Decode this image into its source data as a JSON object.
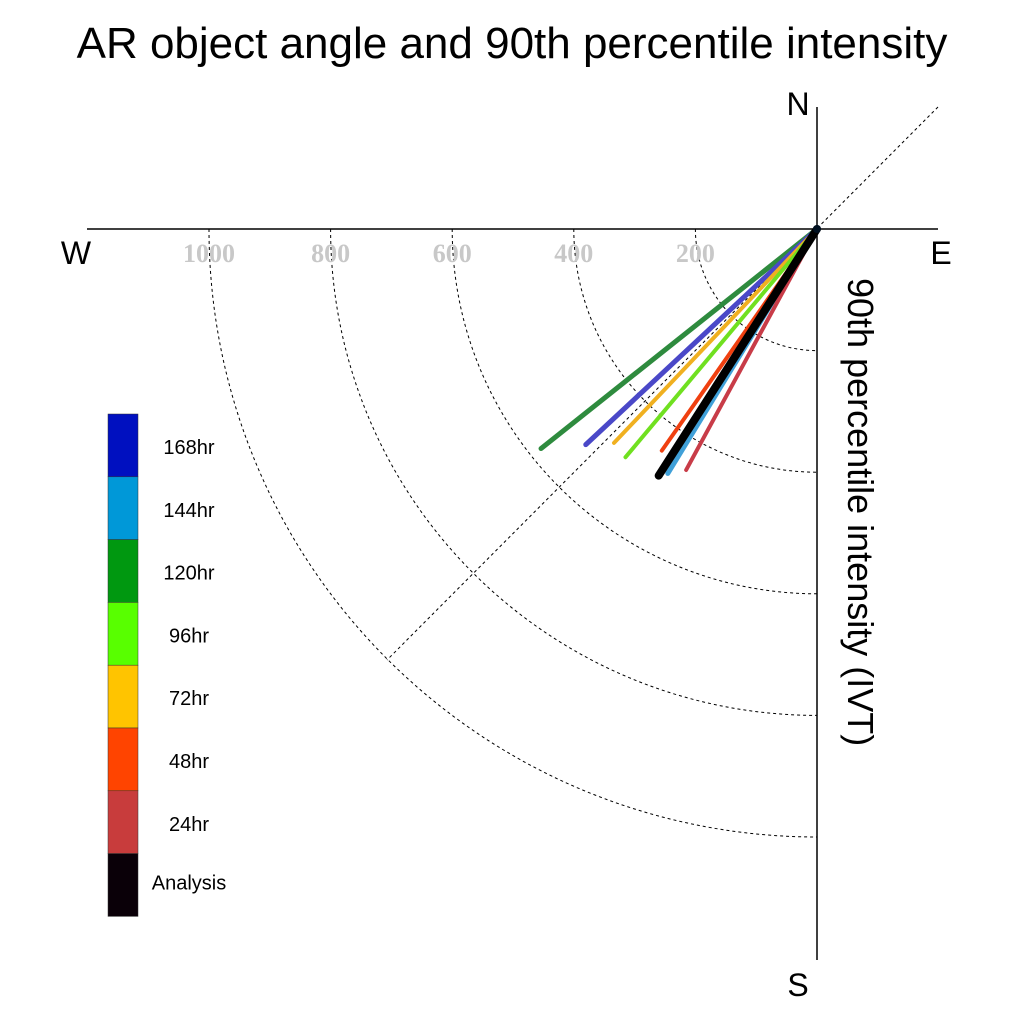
{
  "chart_data": {
    "type": "polar-line",
    "title": "AR object angle and 90th percentile intensity",
    "ylabel": "90th percentile intensity (IVT)",
    "compass": {
      "north": "N",
      "south": "S",
      "east": "E",
      "west": "W"
    },
    "radial_ticks": [
      {
        "value": 200,
        "label": "200"
      },
      {
        "value": 400,
        "label": "400"
      },
      {
        "value": 600,
        "label": "600"
      },
      {
        "value": 800,
        "label": "800"
      },
      {
        "value": 1000,
        "label": "1000"
      }
    ],
    "radial_max": 1000,
    "reference_angle_deg": 45,
    "angle_convention": "degrees below west axis",
    "legend": [
      {
        "label": "168hr",
        "color": "#0010c0"
      },
      {
        "label": "144hr",
        "color": "#0098d8"
      },
      {
        "label": "120hr",
        "color": "#009810"
      },
      {
        "label": "96hr",
        "color": "#58ff00"
      },
      {
        "label": "72hr",
        "color": "#ffc400"
      },
      {
        "label": "48hr",
        "color": "#ff4400"
      },
      {
        "label": "24hr",
        "color": "#c83c3c"
      },
      {
        "label": "Analysis",
        "color": "#0a0008"
      }
    ],
    "series": [
      {
        "name": "120hr",
        "color": "#2e8b3e",
        "angle_deg": 38.5,
        "value": 580,
        "width": 5
      },
      {
        "name": "168hr",
        "color": "#4a48c8",
        "angle_deg": 43.0,
        "value": 520,
        "width": 5
      },
      {
        "name": "72hr",
        "color": "#f0b020",
        "angle_deg": 46.5,
        "value": 485,
        "width": 4
      },
      {
        "name": "96hr",
        "color": "#70e020",
        "angle_deg": 50.0,
        "value": 490,
        "width": 4
      },
      {
        "name": "48hr",
        "color": "#f04010",
        "angle_deg": 55.0,
        "value": 445,
        "width": 4
      },
      {
        "name": "144hr",
        "color": "#40a0d8",
        "angle_deg": 58.6,
        "value": 471,
        "width": 5
      },
      {
        "name": "24hr",
        "color": "#c83c48",
        "angle_deg": 61.5,
        "value": 451,
        "width": 4
      },
      {
        "name": "Analysis",
        "color": "#000000",
        "angle_deg": 57.3,
        "value": 482,
        "width": 8
      }
    ]
  }
}
